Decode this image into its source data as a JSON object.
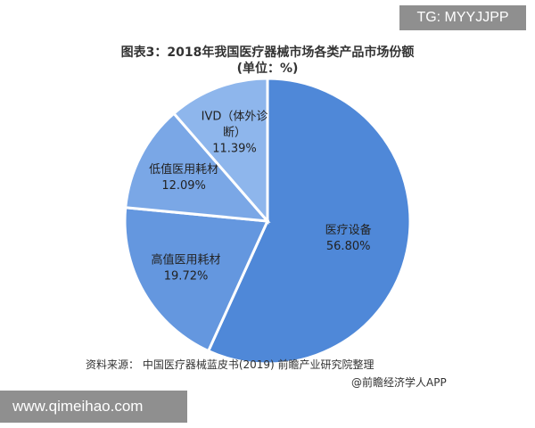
{
  "watermark_top": "TG: MYYJJPP",
  "watermark_bottom": "www.qimeihao.com",
  "chart_data": {
    "type": "pie",
    "title": "图表3：2018年我国医疗器械市场各类产品市场份额",
    "subtitle": "(单位：%)",
    "categories": [
      "医疗设备",
      "高值医用耗材",
      "低值医用耗材",
      "IVD（体外诊断）"
    ],
    "values": [
      56.8,
      19.72,
      12.09,
      11.39
    ],
    "value_labels": [
      "56.80%",
      "19.72%",
      "12.09%",
      "11.39%"
    ],
    "label_lines": [
      [
        "医疗设备"
      ],
      [
        "高值医用耗材"
      ],
      [
        "低值医用耗材"
      ],
      [
        "IVD（体外诊",
        "断）"
      ]
    ],
    "colors": [
      "#4f88d8",
      "#6497df",
      "#7aa7e6",
      "#8eb6ec"
    ]
  },
  "source": "资料来源： 中国医疗器械蓝皮书(2019) 前瞻产业研究院整理",
  "credit": "@前瞻经济学人APP"
}
